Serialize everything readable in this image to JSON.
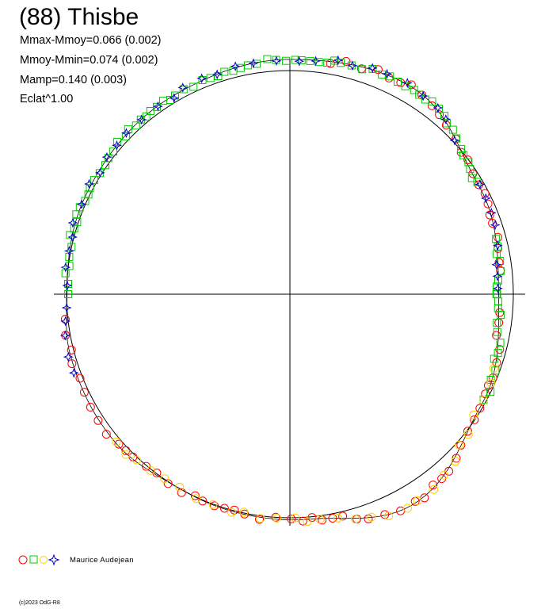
{
  "chart_data": {
    "type": "scatter",
    "subtype": "polar-lightcurve",
    "title": "(88) Thisbe",
    "stats": [
      "Mmax-Mmoy=0.066 (0.002)",
      "Mmoy-Mmin=0.074 (0.002)",
      "Mamp=0.140 (0.003)",
      "Eclat^1.00"
    ],
    "axes": {
      "horizontal": true,
      "vertical": true,
      "reference_circle": true
    },
    "grid": false,
    "legend_placement": "bottom-left",
    "legend_observer": "Maurice Audejean",
    "series_styles": [
      {
        "marker": "circle",
        "color": "#ff0000"
      },
      {
        "marker": "square",
        "color": "#00cc00"
      },
      {
        "marker": "circle",
        "color": "#ffd000"
      },
      {
        "marker": "star4",
        "color": "#0000cc"
      }
    ],
    "curve_radius_profile": [
      {
        "angle_deg": 0,
        "r": 0.934
      },
      {
        "angle_deg": 30,
        "r": 0.99
      },
      {
        "angle_deg": 60,
        "r": 1.09
      },
      {
        "angle_deg": 85,
        "r": 1.01
      },
      {
        "angle_deg": 105,
        "r": 1.005
      },
      {
        "angle_deg": 120,
        "r": 1.0
      },
      {
        "angle_deg": 140,
        "r": 1.025
      },
      {
        "angle_deg": 165,
        "r": 1.02
      },
      {
        "angle_deg": 180,
        "r": 0.998
      },
      {
        "angle_deg": 205,
        "r": 1.015
      },
      {
        "angle_deg": 240,
        "r": 1.03
      },
      {
        "angle_deg": 270,
        "r": 1.05
      },
      {
        "angle_deg": 300,
        "r": 1.075
      },
      {
        "angle_deg": 330,
        "r": 0.975
      },
      {
        "angle_deg": 360,
        "r": 0.934
      }
    ]
  },
  "footer": {
    "copyright": "(c)2023 OdG-R8"
  }
}
